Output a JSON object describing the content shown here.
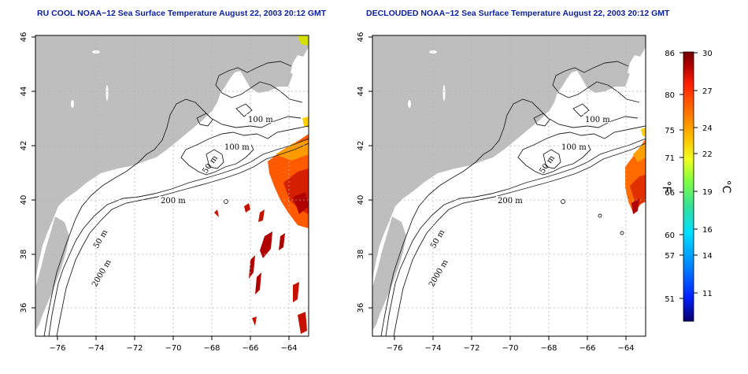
{
  "panels": [
    {
      "id": "left",
      "title": "RU COOL NOAA−12 Sea Surface Temperature August 22, 2003 20:12 GMT",
      "x_ticks": [
        "−76",
        "−74",
        "−72",
        "−70",
        "−68",
        "−66",
        "−64"
      ],
      "y_ticks": [
        "36",
        "38",
        "40",
        "42",
        "44",
        "46"
      ],
      "contour_labels": [
        "100 m",
        "100 m",
        "50 m",
        "200 m",
        "50 m",
        "2000 m"
      ]
    },
    {
      "id": "right",
      "title": "DECLOUDED NOAA−12 Sea Surface Temperature August 22, 2003 20:12 GMT",
      "x_ticks": [
        "−76",
        "−74",
        "−72",
        "−70",
        "−68",
        "−66",
        "−64"
      ],
      "y_ticks": [
        "36",
        "38",
        "40",
        "42",
        "44",
        "46"
      ],
      "contour_labels": [
        "100 m",
        "100 m",
        "50 m",
        "200 m",
        "50 m",
        "2000 m"
      ]
    }
  ],
  "colorbar": {
    "fahrenheit_ticks": [
      "86",
      "80",
      "75",
      "71",
      "66",
      "60",
      "57",
      "51"
    ],
    "celsius_ticks": [
      "30",
      "27",
      "24",
      "22",
      "19",
      "16",
      "14",
      "11"
    ],
    "fahrenheit_unit": "°F",
    "celsius_unit": "°C",
    "range_c": [
      9,
      30
    ],
    "colors": [
      "#08006e",
      "#0020ff",
      "#0090ff",
      "#00e0ff",
      "#30e0a0",
      "#80ff40",
      "#f0ff20",
      "#ffc000",
      "#ff7000",
      "#ff2000",
      "#b00000",
      "#700000"
    ]
  },
  "colors": {
    "land": "#bebebe",
    "title": "#0a1e9c",
    "grid": "#b4b4b4",
    "contour": "#202020"
  }
}
